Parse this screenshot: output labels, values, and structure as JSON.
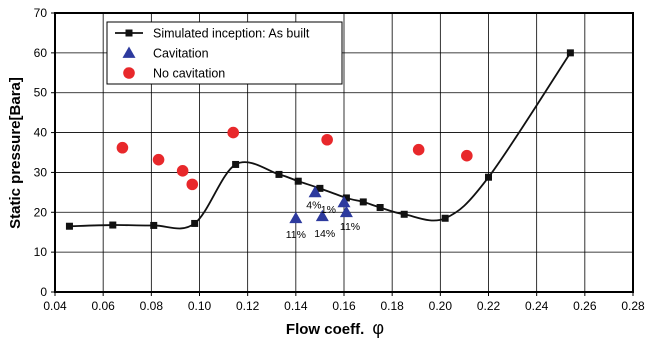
{
  "chart_data": {
    "type": "scatter",
    "xlabel": "Flow coeff.",
    "xlabel_symbol": "φ",
    "ylabel": "Static pressure[Bara]",
    "xlim": [
      0.04,
      0.28
    ],
    "ylim": [
      0,
      70
    ],
    "x_ticks": [
      "0.04",
      "0.06",
      "0.08",
      "0.10",
      "0.12",
      "0.14",
      "0.16",
      "0.18",
      "0.20",
      "0.22",
      "0.24",
      "0.26",
      "0.28"
    ],
    "y_ticks": [
      "0",
      "10",
      "20",
      "30",
      "40",
      "50",
      "60",
      "70"
    ],
    "grid": true,
    "legend_position": "top-left",
    "series": [
      {
        "name": "Simulated inception: As built",
        "marker": "square",
        "color": "#111111",
        "points": [
          [
            0.046,
            16.5
          ],
          [
            0.064,
            16.8
          ],
          [
            0.081,
            16.7
          ],
          [
            0.098,
            17.2
          ],
          [
            0.115,
            32.0
          ],
          [
            0.133,
            29.5
          ],
          [
            0.141,
            27.8
          ],
          [
            0.15,
            26.0
          ],
          [
            0.161,
            23.6
          ],
          [
            0.168,
            22.6
          ],
          [
            0.175,
            21.2
          ],
          [
            0.185,
            19.5
          ],
          [
            0.202,
            18.5
          ],
          [
            0.22,
            28.8
          ],
          [
            0.254,
            60.0
          ]
        ]
      },
      {
        "name": "Cavitation",
        "marker": "triangle",
        "color": "#2d3a9e",
        "points": [
          [
            0.14,
            18.5
          ],
          [
            0.148,
            25.0
          ],
          [
            0.151,
            19.0
          ],
          [
            0.16,
            22.5
          ],
          [
            0.161,
            20.0
          ]
        ]
      },
      {
        "name": "No cavitation",
        "marker": "circle",
        "color": "#e8282b",
        "points": [
          [
            0.068,
            36.2
          ],
          [
            0.083,
            33.2
          ],
          [
            0.093,
            30.4
          ],
          [
            0.097,
            27.0
          ],
          [
            0.114,
            40.0
          ],
          [
            0.153,
            38.2
          ],
          [
            0.191,
            35.7
          ],
          [
            0.211,
            34.2
          ]
        ]
      }
    ],
    "annotations": [
      {
        "text": "11%",
        "x": 0.14,
        "y": 14.5
      },
      {
        "text": "4%",
        "x": 0.1475,
        "y": 22.0
      },
      {
        "text": "1%",
        "x": 0.1535,
        "y": 20.8
      },
      {
        "text": "14%",
        "x": 0.152,
        "y": 14.8
      },
      {
        "text": "11%",
        "x": 0.1625,
        "y": 16.5
      }
    ]
  }
}
